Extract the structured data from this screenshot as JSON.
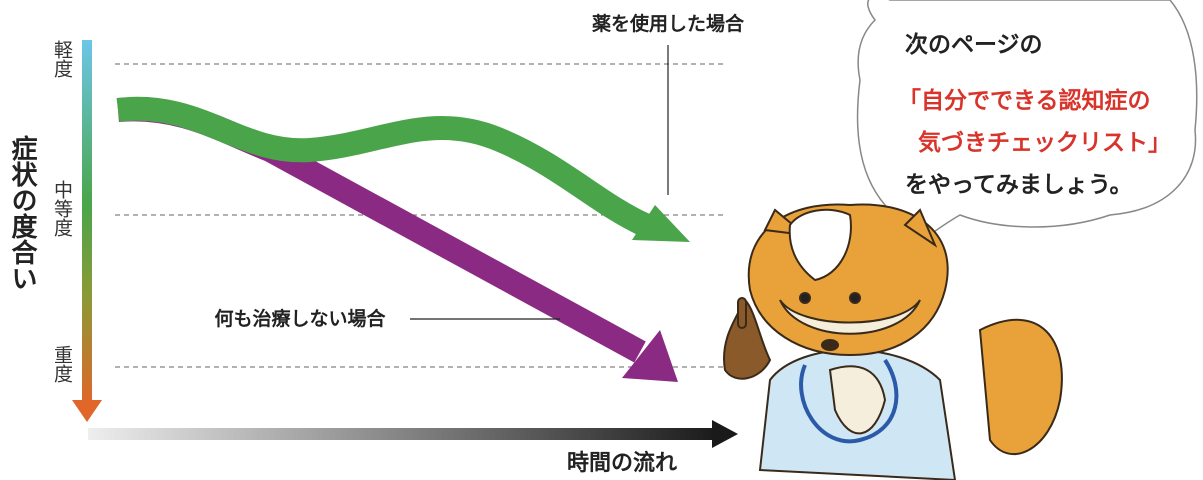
{
  "axis": {
    "y_title": "症状の度合い",
    "levels": [
      "軽度",
      "中等度",
      "重度"
    ],
    "x_title": "時間の流れ"
  },
  "curves": [
    {
      "label": "薬を使用した場合"
    },
    {
      "label": "何も治療しない場合"
    }
  ],
  "bubble": {
    "lines": [
      "次のページの",
      "「自分でできる認知症の",
      "気づきチェックリスト」",
      "をやってみましょう。"
    ]
  }
}
